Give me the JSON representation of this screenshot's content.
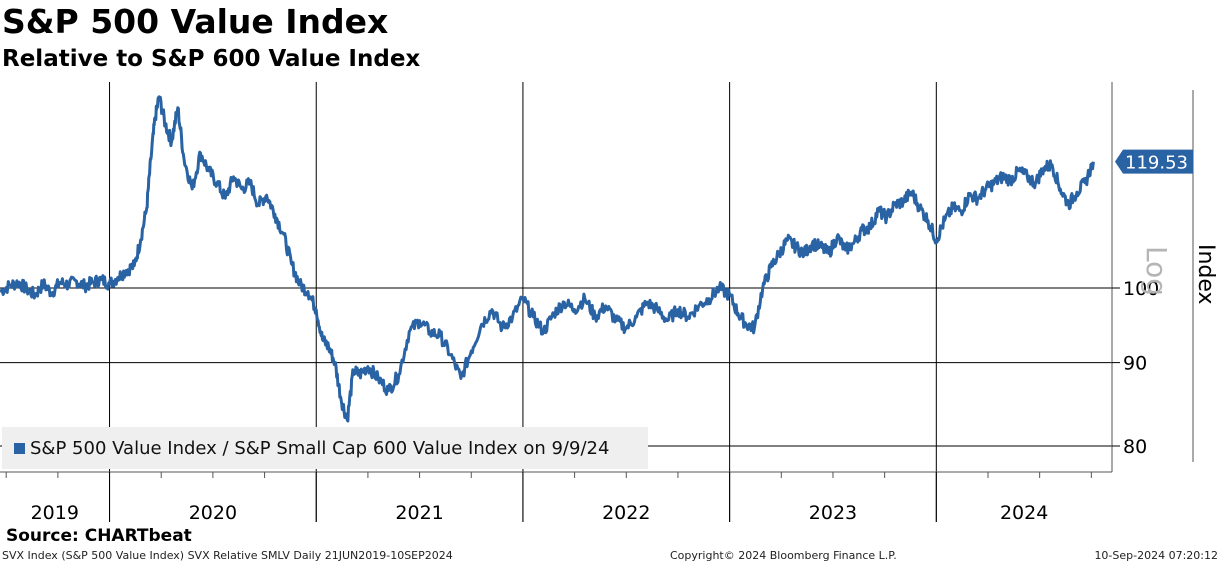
{
  "header": {
    "title": "S&P 500 Value Index",
    "subtitle": "Relative to S&P 600 Value Index"
  },
  "source": "Source: CHARTbeat",
  "footer": {
    "left": "SVX Index (S&P 500 Value Index) SVX Relative SMLV  Daily 21JUN2019-10SEP2024",
    "center": "Copyright© 2024 Bloomberg Finance L.P.",
    "right": "10-Sep-2024 07:20:12"
  },
  "chart_data": {
    "type": "line",
    "scale": "log",
    "ylabel": "Index",
    "scale_label": "Log",
    "ylim": [
      77,
      135
    ],
    "xlim": [
      2019.47,
      2024.85
    ],
    "y_ticks": [
      80,
      90,
      100
    ],
    "x_tick_labels": [
      "2019",
      "2020",
      "2021",
      "2022",
      "2023",
      "2024"
    ],
    "year_boundaries": [
      2020,
      2021,
      2022,
      2023,
      2024
    ],
    "last_value_label": "119.53",
    "legend": "S&P 500 Value Index / S&P Small Cap 600 Value Index on 9/9/24",
    "legend_placement": "bottom-left",
    "grid": true,
    "color": "#2a63a3",
    "series": [
      {
        "name": "S&P 500 Value Index / S&P Small Cap 600 Value Index on 9/9/24",
        "x": [
          2019.47,
          2019.52,
          2019.56,
          2019.6,
          2019.64,
          2019.68,
          2019.72,
          2019.76,
          2019.8,
          2019.84,
          2019.88,
          2019.92,
          2019.96,
          2020.0,
          2020.04,
          2020.08,
          2020.12,
          2020.15,
          2020.18,
          2020.2,
          2020.22,
          2020.24,
          2020.27,
          2020.3,
          2020.33,
          2020.36,
          2020.4,
          2020.44,
          2020.48,
          2020.52,
          2020.56,
          2020.6,
          2020.64,
          2020.68,
          2020.72,
          2020.76,
          2020.8,
          2020.84,
          2020.88,
          2020.92,
          2020.96,
          2021.0,
          2021.03,
          2021.06,
          2021.09,
          2021.12,
          2021.15,
          2021.18,
          2021.21,
          2021.25,
          2021.3,
          2021.35,
          2021.4,
          2021.45,
          2021.5,
          2021.55,
          2021.6,
          2021.65,
          2021.7,
          2021.75,
          2021.8,
          2021.85,
          2021.9,
          2021.95,
          2022.0,
          2022.05,
          2022.1,
          2022.15,
          2022.2,
          2022.25,
          2022.3,
          2022.35,
          2022.4,
          2022.45,
          2022.5,
          2022.55,
          2022.6,
          2022.65,
          2022.7,
          2022.75,
          2022.8,
          2022.85,
          2022.9,
          2022.95,
          2023.0,
          2023.04,
          2023.08,
          2023.12,
          2023.16,
          2023.2,
          2023.24,
          2023.28,
          2023.32,
          2023.36,
          2023.4,
          2023.44,
          2023.48,
          2023.52,
          2023.56,
          2023.6,
          2023.64,
          2023.68,
          2023.72,
          2023.76,
          2023.8,
          2023.84,
          2023.88,
          2023.92,
          2023.96,
          2024.0,
          2024.04,
          2024.08,
          2024.12,
          2024.16,
          2024.2,
          2024.24,
          2024.28,
          2024.32,
          2024.36,
          2024.4,
          2024.44,
          2024.48,
          2024.52,
          2024.56,
          2024.6,
          2024.64,
          2024.68,
          2024.72,
          2024.76
        ],
        "values": [
          99.5,
          100.4,
          100.8,
          99.8,
          99.0,
          100.6,
          99.3,
          100.8,
          100.5,
          101.0,
          100.3,
          100.8,
          101.2,
          100.6,
          101.5,
          102.5,
          103.2,
          107.0,
          112.0,
          120.0,
          127.0,
          131.0,
          126.0,
          123.0,
          129.0,
          120.0,
          115.0,
          121.0,
          118.0,
          116.0,
          113.5,
          117.0,
          115.0,
          116.0,
          112.5,
          114.0,
          111.0,
          108.0,
          103.5,
          100.5,
          99.5,
          97.0,
          93.0,
          92.0,
          90.0,
          85.5,
          83.0,
          89.0,
          88.5,
          89.5,
          88.0,
          86.5,
          88.5,
          94.0,
          95.5,
          94.0,
          93.5,
          91.0,
          88.0,
          91.5,
          95.0,
          97.0,
          94.5,
          96.0,
          98.5,
          96.0,
          94.0,
          96.5,
          98.0,
          97.0,
          98.5,
          96.0,
          97.5,
          95.5,
          94.5,
          96.0,
          98.0,
          97.0,
          95.5,
          97.0,
          96.0,
          97.5,
          98.5,
          100.0,
          99.0,
          96.5,
          95.0,
          94.5,
          100.0,
          103.0,
          105.0,
          107.0,
          106.0,
          105.0,
          106.5,
          106.0,
          105.0,
          107.5,
          105.5,
          106.5,
          108.5,
          109.0,
          111.5,
          110.5,
          112.5,
          113.0,
          114.5,
          112.0,
          110.0,
          107.0,
          110.0,
          112.0,
          111.5,
          114.0,
          113.5,
          115.0,
          116.0,
          117.0,
          116.5,
          118.0,
          117.0,
          116.0,
          118.5,
          119.0,
          115.0,
          112.5,
          114.5,
          116.0,
          119.53
        ]
      }
    ]
  }
}
